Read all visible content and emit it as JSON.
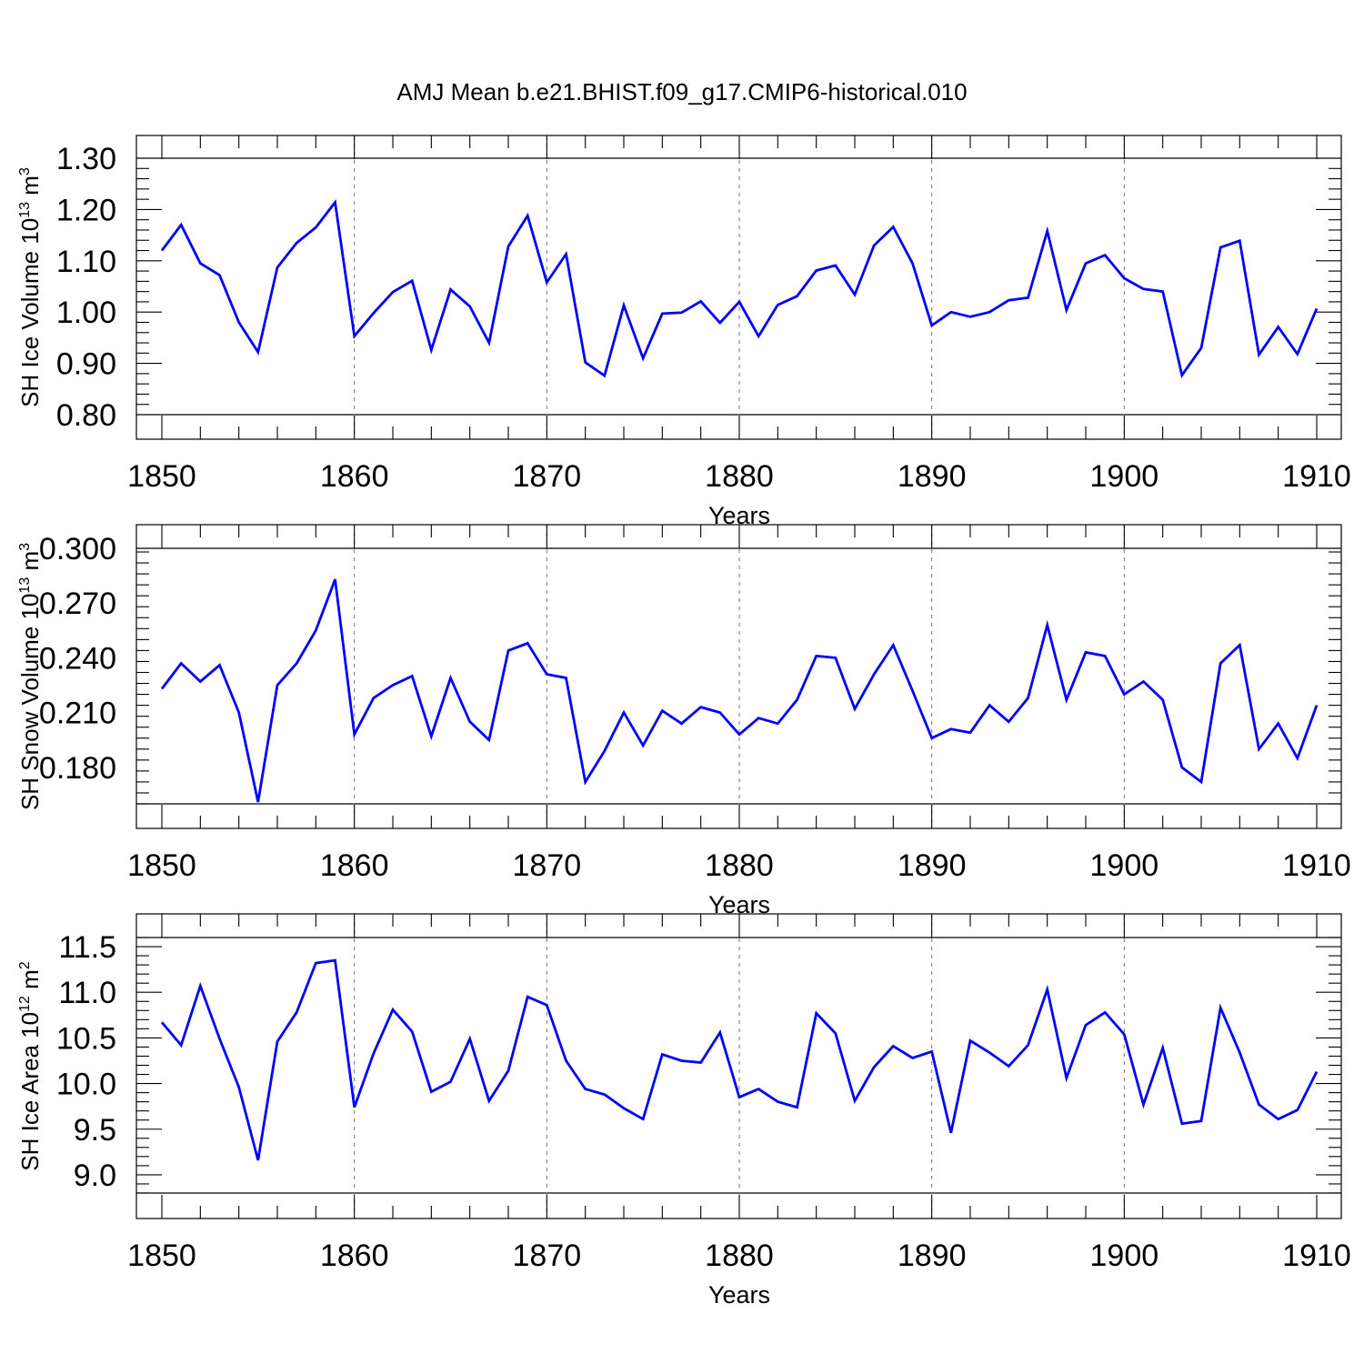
{
  "title": "AMJ Mean b.e21.BHIST.f09_g17.CMIP6-historical.010",
  "colors": {
    "line": "#0000ff",
    "axis": "#000000",
    "grid": "#777777"
  },
  "chart_data": [
    {
      "type": "line",
      "ylabel_main": "SH Ice Volume 10",
      "ylabel_exp": "13",
      "ylabel_unit": " m",
      "ylabel_unit_exp": "3",
      "xlabel": "Years",
      "xlim": [
        1850,
        1910
      ],
      "ylim": [
        0.8,
        1.3
      ],
      "yticks": [
        0.8,
        0.9,
        1.0,
        1.1,
        1.2,
        1.3
      ],
      "ytick_labels": [
        "0.80",
        "0.90",
        "1.00",
        "1.10",
        "1.20",
        "1.30"
      ],
      "xticks": [
        1850,
        1860,
        1870,
        1880,
        1890,
        1900,
        1910
      ],
      "xtick_labels": [
        "1850",
        "1860",
        "1870",
        "1880",
        "1890",
        "1900",
        "1910"
      ],
      "grid": "vertical dashed at major x ticks",
      "x": [
        1850,
        1851,
        1852,
        1853,
        1854,
        1855,
        1856,
        1857,
        1858,
        1859,
        1860,
        1861,
        1862,
        1863,
        1864,
        1865,
        1866,
        1867,
        1868,
        1869,
        1870,
        1871,
        1872,
        1873,
        1874,
        1875,
        1876,
        1877,
        1878,
        1879,
        1880,
        1881,
        1882,
        1883,
        1884,
        1885,
        1886,
        1887,
        1888,
        1889,
        1890,
        1891,
        1892,
        1893,
        1894,
        1895,
        1896,
        1897,
        1898,
        1899,
        1900,
        1901,
        1902,
        1903,
        1904,
        1905,
        1906,
        1907,
        1908,
        1909,
        1910
      ],
      "values": [
        1.12,
        1.17,
        1.095,
        1.072,
        0.98,
        0.922,
        1.087,
        1.135,
        1.165,
        1.214,
        0.953,
        0.998,
        1.039,
        1.061,
        0.926,
        1.044,
        1.011,
        0.94,
        1.128,
        1.188,
        1.058,
        1.113,
        0.902,
        0.876,
        1.013,
        0.91,
        0.997,
        0.999,
        1.021,
        0.979,
        1.02,
        0.953,
        1.014,
        1.031,
        1.081,
        1.091,
        1.034,
        1.13,
        1.166,
        1.095,
        0.974,
        1.0,
        0.991,
        1.0,
        1.023,
        1.028,
        1.158,
        1.004,
        1.095,
        1.111,
        1.066,
        1.045,
        1.04,
        0.877,
        0.93,
        1.126,
        1.139,
        0.917,
        0.971,
        0.918,
        1.007
      ]
    },
    {
      "type": "line",
      "ylabel_main": "SH Snow Volume 10",
      "ylabel_exp": "13",
      "ylabel_unit": " m",
      "ylabel_unit_exp": "3",
      "xlabel": "Years",
      "xlim": [
        1850,
        1910
      ],
      "ylim": [
        0.16,
        0.3
      ],
      "yticks": [
        0.18,
        0.21,
        0.24,
        0.27,
        0.3
      ],
      "ytick_labels": [
        "0.180",
        "0.210",
        "0.240",
        "0.270",
        "0.300"
      ],
      "xticks": [
        1850,
        1860,
        1870,
        1880,
        1890,
        1900,
        1910
      ],
      "xtick_labels": [
        "1850",
        "1860",
        "1870",
        "1880",
        "1890",
        "1900",
        "1910"
      ],
      "grid": "vertical dashed at major x ticks",
      "x": [
        1850,
        1851,
        1852,
        1853,
        1854,
        1855,
        1856,
        1857,
        1858,
        1859,
        1860,
        1861,
        1862,
        1863,
        1864,
        1865,
        1866,
        1867,
        1868,
        1869,
        1870,
        1871,
        1872,
        1873,
        1874,
        1875,
        1876,
        1877,
        1878,
        1879,
        1880,
        1881,
        1882,
        1883,
        1884,
        1885,
        1886,
        1887,
        1888,
        1889,
        1890,
        1891,
        1892,
        1893,
        1894,
        1895,
        1896,
        1897,
        1898,
        1899,
        1900,
        1901,
        1902,
        1903,
        1904,
        1905,
        1906,
        1907,
        1908,
        1909,
        1910
      ],
      "values": [
        0.223,
        0.237,
        0.227,
        0.236,
        0.21,
        0.161,
        0.225,
        0.237,
        0.255,
        0.283,
        0.198,
        0.218,
        0.225,
        0.23,
        0.197,
        0.229,
        0.205,
        0.195,
        0.244,
        0.248,
        0.231,
        0.229,
        0.172,
        0.189,
        0.21,
        0.192,
        0.211,
        0.204,
        0.213,
        0.21,
        0.198,
        0.207,
        0.204,
        0.217,
        0.241,
        0.24,
        0.212,
        0.231,
        0.247,
        0.222,
        0.196,
        0.201,
        0.199,
        0.214,
        0.205,
        0.218,
        0.258,
        0.217,
        0.243,
        0.241,
        0.22,
        0.227,
        0.217,
        0.18,
        0.172,
        0.237,
        0.247,
        0.19,
        0.204,
        0.185,
        0.214
      ]
    },
    {
      "type": "line",
      "ylabel_main": "SH Ice Area 10",
      "ylabel_exp": "12",
      "ylabel_unit": " m",
      "ylabel_unit_exp": "2",
      "xlabel": "Years",
      "xlim": [
        1850,
        1910
      ],
      "ylim": [
        8.8,
        11.6
      ],
      "yticks": [
        9.0,
        9.5,
        10.0,
        10.5,
        11.0,
        11.5
      ],
      "ytick_labels": [
        "9.0",
        "9.5",
        "10.0",
        "10.5",
        "11.0",
        "11.5"
      ],
      "xticks": [
        1850,
        1860,
        1870,
        1880,
        1890,
        1900,
        1910
      ],
      "xtick_labels": [
        "1850",
        "1860",
        "1870",
        "1880",
        "1890",
        "1900",
        "1910"
      ],
      "grid": "vertical dashed at major x ticks",
      "x": [
        1850,
        1851,
        1852,
        1853,
        1854,
        1855,
        1856,
        1857,
        1858,
        1859,
        1860,
        1861,
        1862,
        1863,
        1864,
        1865,
        1866,
        1867,
        1868,
        1869,
        1870,
        1871,
        1872,
        1873,
        1874,
        1875,
        1876,
        1877,
        1878,
        1879,
        1880,
        1881,
        1882,
        1883,
        1884,
        1885,
        1886,
        1887,
        1888,
        1889,
        1890,
        1891,
        1892,
        1893,
        1894,
        1895,
        1896,
        1897,
        1898,
        1899,
        1900,
        1901,
        1902,
        1903,
        1904,
        1905,
        1906,
        1907,
        1908,
        1909,
        1910
      ],
      "values": [
        10.67,
        10.42,
        11.07,
        10.49,
        9.96,
        9.16,
        10.46,
        10.78,
        11.32,
        11.35,
        9.74,
        10.33,
        10.81,
        10.57,
        9.91,
        10.02,
        10.49,
        9.81,
        10.14,
        10.95,
        10.86,
        10.25,
        9.94,
        9.88,
        9.73,
        9.61,
        10.32,
        10.25,
        10.23,
        10.56,
        9.85,
        9.94,
        9.8,
        9.74,
        10.77,
        10.55,
        9.81,
        10.18,
        10.41,
        10.28,
        10.35,
        9.46,
        10.47,
        10.34,
        10.19,
        10.42,
        11.03,
        10.06,
        10.64,
        10.78,
        10.54,
        9.77,
        10.39,
        9.56,
        9.59,
        10.83,
        10.34,
        9.77,
        9.61,
        9.71,
        10.13
      ]
    }
  ]
}
